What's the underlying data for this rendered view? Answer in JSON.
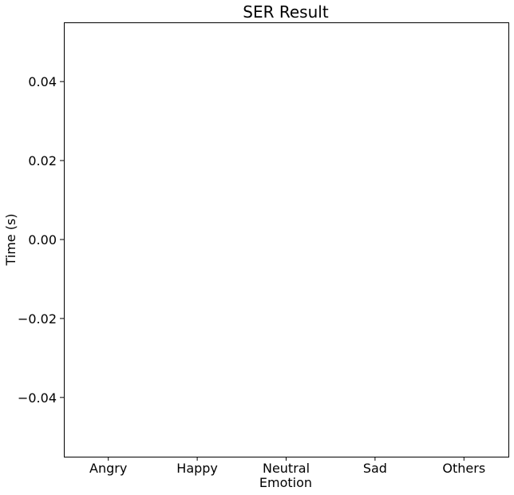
{
  "chart_data": {
    "type": "bar",
    "title": "SER Result",
    "xlabel": "Emotion",
    "ylabel": "Time (s)",
    "categories": [
      "Angry",
      "Happy",
      "Neutral",
      "Sad",
      "Others"
    ],
    "values": [
      0,
      0,
      0,
      0,
      0
    ],
    "ylim": [
      -0.055,
      0.055
    ],
    "yticks": [
      -0.04,
      -0.02,
      0.0,
      0.02,
      0.04
    ],
    "ytick_labels": [
      "−0.04",
      "−0.02",
      "0.00",
      "0.02",
      "0.04"
    ],
    "grid": false,
    "legend": "none"
  }
}
